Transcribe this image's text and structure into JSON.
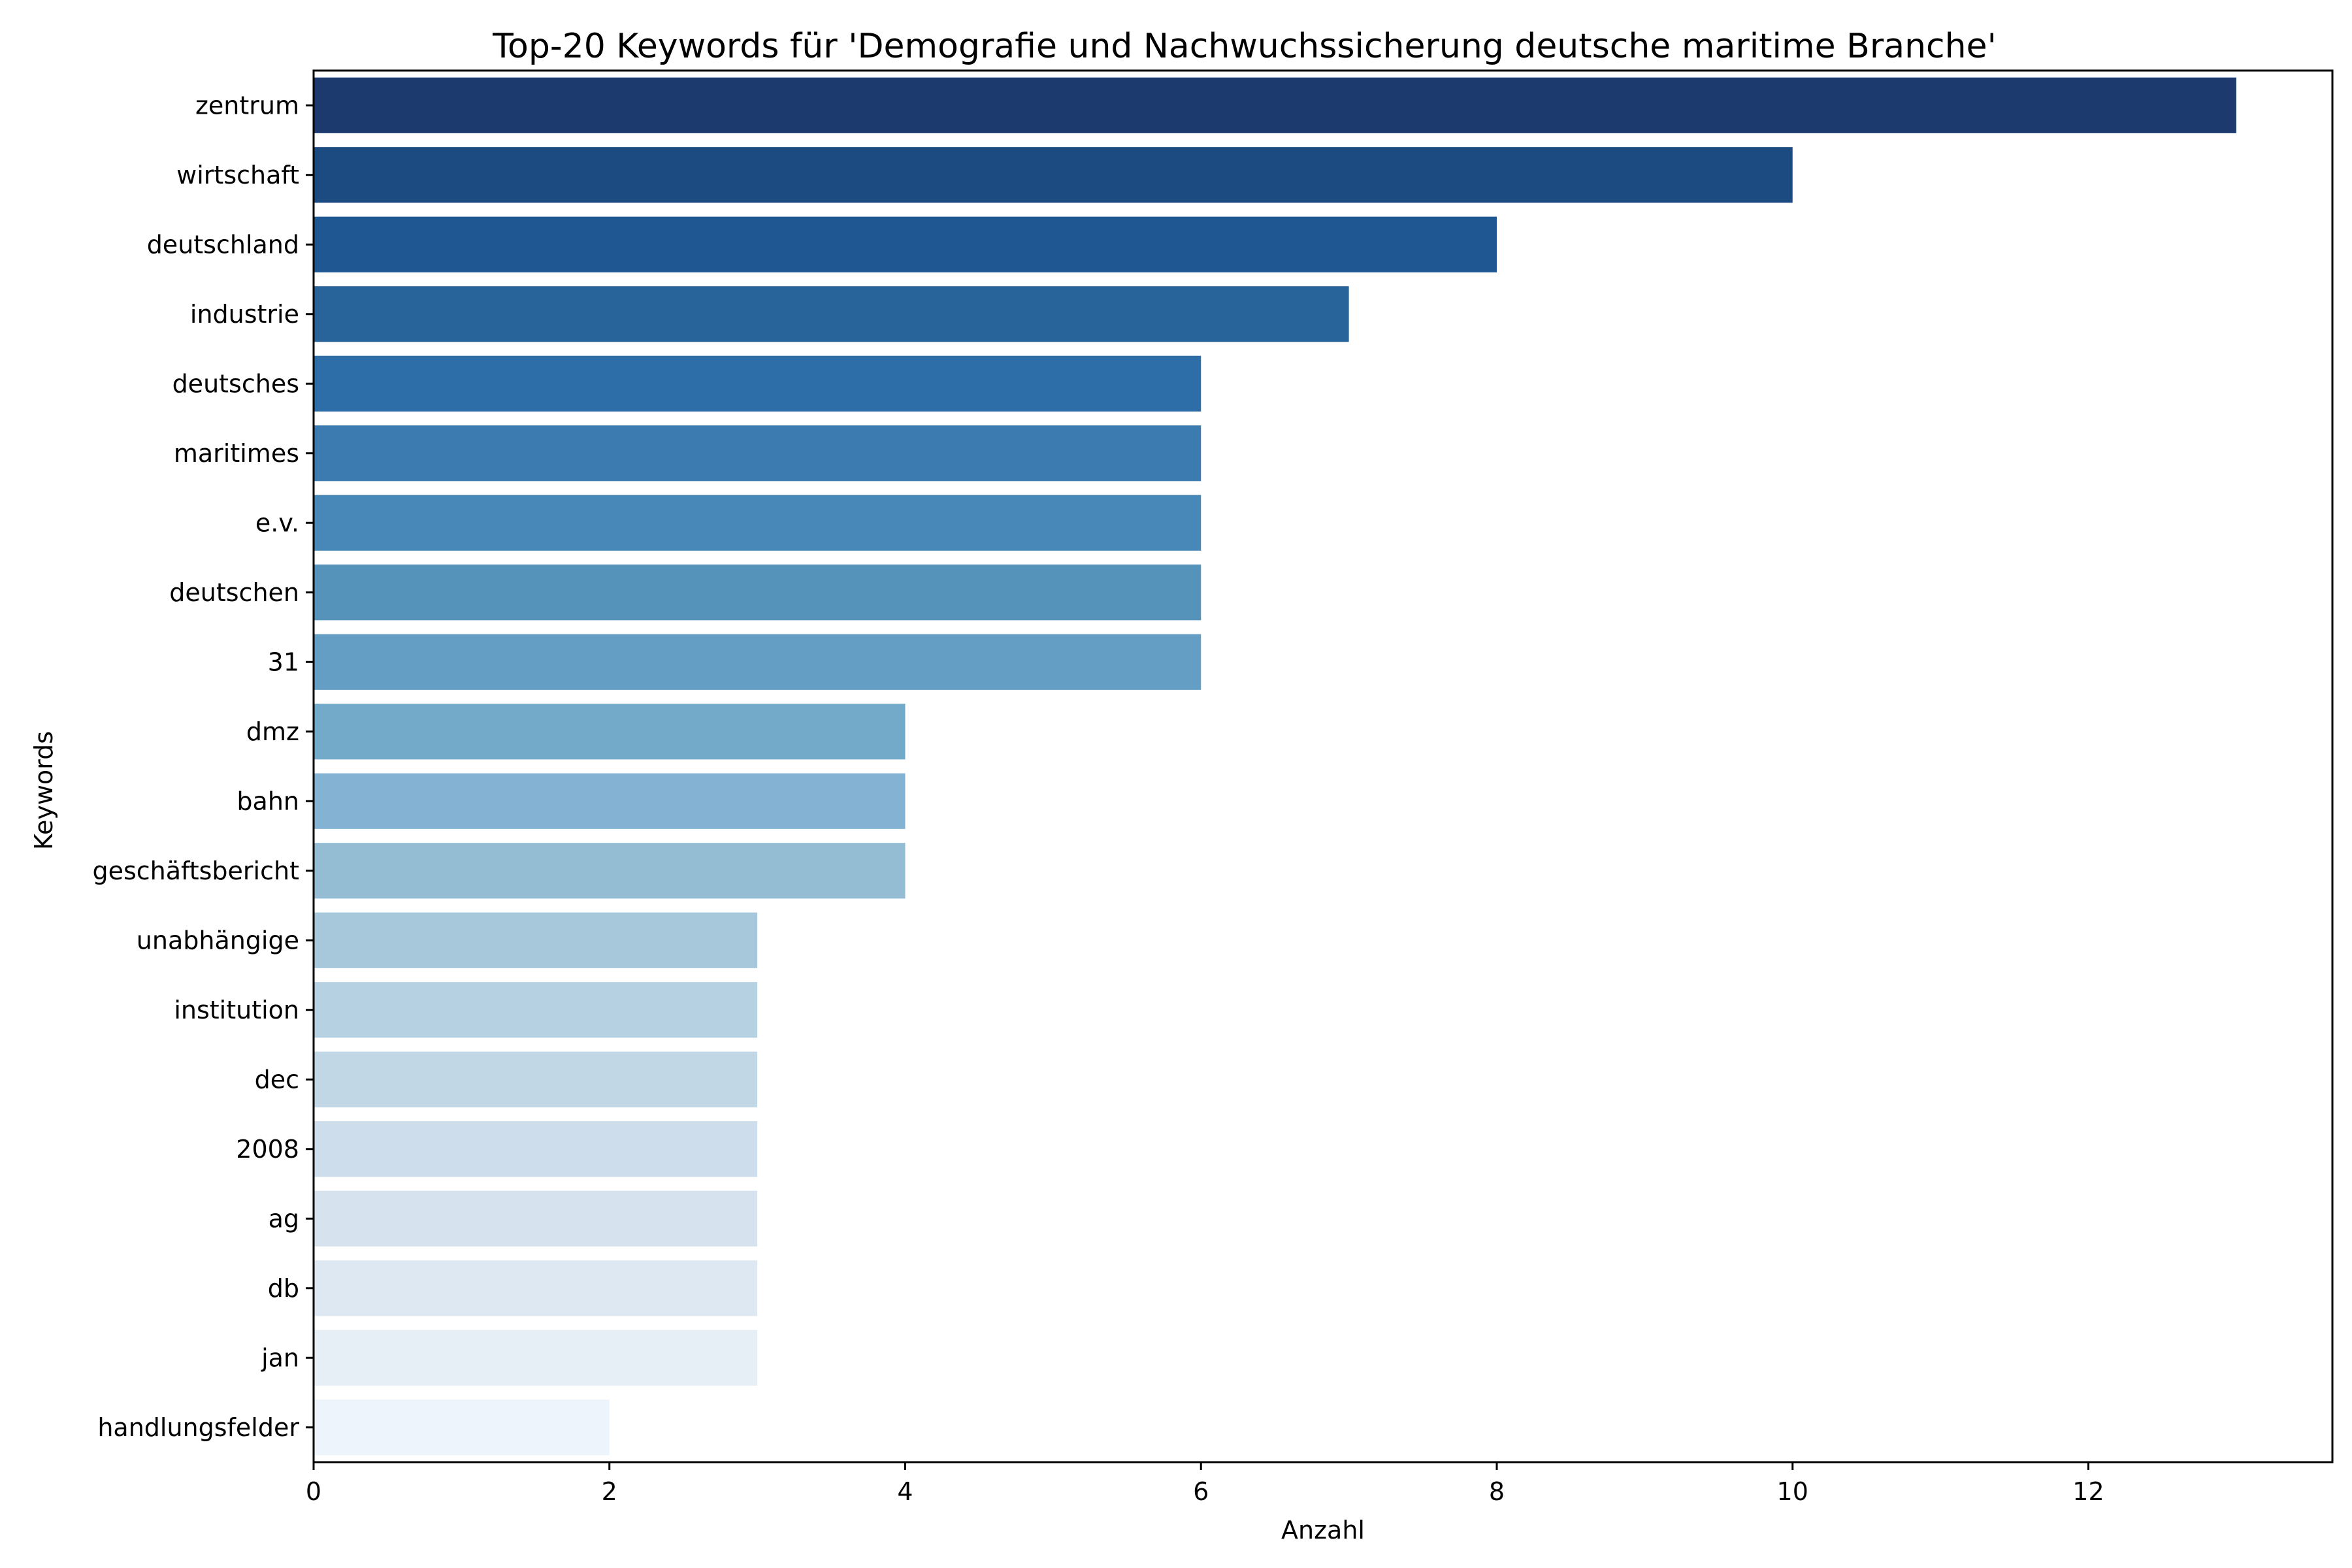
{
  "chart_data": {
    "type": "bar",
    "orientation": "horizontal",
    "title": "Top-20 Keywords für 'Demografie und Nachwuchssicherung deutsche maritime Branche'",
    "xlabel": "Anzahl",
    "ylabel": "Keywords",
    "xlim": [
      0,
      13.65
    ],
    "xticks": [
      0,
      2,
      4,
      6,
      8,
      10,
      12
    ],
    "grid": false,
    "colormap": "Blues_r",
    "categories": [
      "zentrum",
      "wirtschaft",
      "deutschland",
      "industrie",
      "deutsches",
      "maritimes",
      "e.v.",
      "deutschen",
      "31",
      "dmz",
      "bahn",
      "geschäftsbericht",
      "unabhängige",
      "institution",
      "dec",
      "2008",
      "ag",
      "db",
      "jan",
      "handlungsfelder"
    ],
    "values": [
      13,
      10,
      8,
      7,
      6,
      6,
      6,
      6,
      6,
      4,
      4,
      4,
      3,
      3,
      3,
      3,
      3,
      3,
      3,
      2
    ],
    "colors": [
      "#1c3a6e",
      "#1b4b80",
      "#1f5792",
      "#28649a",
      "#2d6ea8",
      "#3b7bb0",
      "#4888b8",
      "#5693bb",
      "#659ec4",
      "#73a9c9",
      "#84b2d3",
      "#94bdd4",
      "#a6c8da",
      "#b5d1e2",
      "#c1d7e6",
      "#cdddec",
      "#d6e3ef",
      "#dde8f3",
      "#e6eef6",
      "#eef4fb"
    ]
  }
}
